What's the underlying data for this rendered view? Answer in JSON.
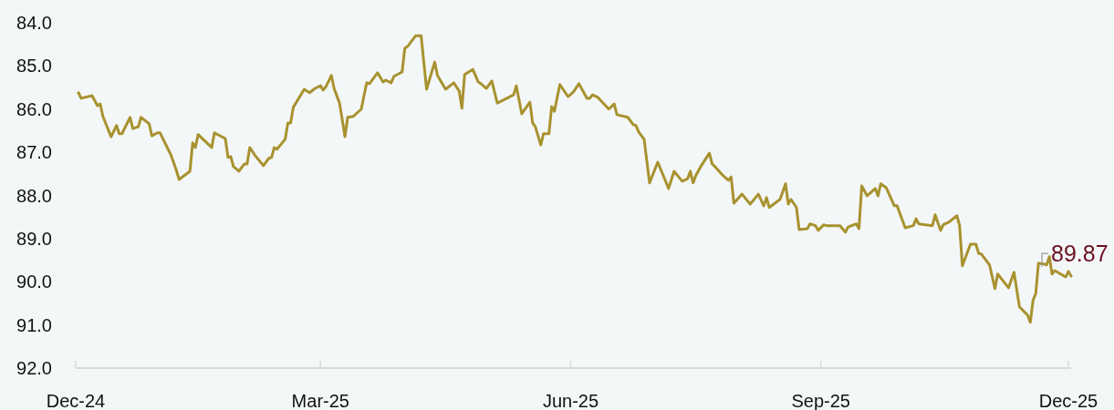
{
  "chart_data": {
    "type": "line",
    "xlim": [
      "2024-12-01",
      "2025-12-02"
    ],
    "ylim": [
      92,
      84
    ],
    "yticks": [
      {
        "value": 84,
        "label": "84.0"
      },
      {
        "value": 85,
        "label": "85.0"
      },
      {
        "value": 86,
        "label": "86.0"
      },
      {
        "value": 87,
        "label": "87.0"
      },
      {
        "value": 88,
        "label": "88.0"
      },
      {
        "value": 89,
        "label": "89.0"
      },
      {
        "value": 90,
        "label": "90.0"
      },
      {
        "value": 91,
        "label": "91.0"
      },
      {
        "value": 92,
        "label": "92.0"
      }
    ],
    "xticks": [
      {
        "value": "2024-12-01",
        "label": "Dec-24"
      },
      {
        "value": "2025-03-01",
        "label": "Mar-25"
      },
      {
        "value": "2025-06-01",
        "label": "Jun-25"
      },
      {
        "value": "2025-09-01",
        "label": "Sep-25"
      },
      {
        "value": "2025-12-01",
        "label": "Dec-25"
      }
    ],
    "grid": false,
    "marker": "none",
    "line_style": "solid",
    "annotations": [
      {
        "text": "89.87",
        "x": "2025-12-02",
        "y": 89.87
      }
    ],
    "series": [
      {
        "color": "#a8922f",
        "x": [
          "2024-12-02",
          "2024-12-03",
          "2024-12-07",
          "2024-12-09",
          "2024-12-10",
          "2024-12-11",
          "2024-12-14",
          "2024-12-16",
          "2024-12-17",
          "2024-12-18",
          "2024-12-21",
          "2024-12-22",
          "2024-12-24",
          "2024-12-25",
          "2024-12-28",
          "2024-12-29",
          "2024-12-31",
          "2025-01-01",
          "2025-01-05",
          "2025-01-07",
          "2025-01-08",
          "2025-01-12",
          "2025-01-13",
          "2025-01-14",
          "2025-01-15",
          "2025-01-20",
          "2025-01-21",
          "2025-01-25",
          "2025-01-26",
          "2025-01-27",
          "2025-01-28",
          "2025-01-30",
          "2025-02-01",
          "2025-02-02",
          "2025-02-03",
          "2025-02-05",
          "2025-02-08",
          "2025-02-10",
          "2025-02-11",
          "2025-02-12",
          "2025-02-13",
          "2025-02-16",
          "2025-02-17",
          "2025-02-18",
          "2025-02-19",
          "2025-02-23",
          "2025-02-25",
          "2025-02-27",
          "2025-03-01",
          "2025-03-02",
          "2025-03-03",
          "2025-03-05",
          "2025-03-06",
          "2025-03-08",
          "2025-03-10",
          "2025-03-11",
          "2025-03-13",
          "2025-03-16",
          "2025-03-17",
          "2025-03-18",
          "2025-03-19",
          "2025-03-22",
          "2025-03-24",
          "2025-03-25",
          "2025-03-27",
          "2025-03-28",
          "2025-03-31",
          "2025-04-01",
          "2025-04-02",
          "2025-04-05",
          "2025-04-07",
          "2025-04-09",
          "2025-04-12",
          "2025-04-13",
          "2025-04-16",
          "2025-04-19",
          "2025-04-21",
          "2025-04-22",
          "2025-04-23",
          "2025-04-26",
          "2025-04-28",
          "2025-04-29",
          "2025-05-01",
          "2025-05-03",
          "2025-05-05",
          "2025-05-11",
          "2025-05-12",
          "2025-05-14",
          "2025-05-17",
          "2025-05-18",
          "2025-05-19",
          "2025-05-21",
          "2025-05-22",
          "2025-05-24",
          "2025-05-25",
          "2025-05-26",
          "2025-05-28",
          "2025-05-31",
          "2025-06-02",
          "2025-06-04",
          "2025-06-07",
          "2025-06-08",
          "2025-06-09",
          "2025-06-11",
          "2025-06-15",
          "2025-06-17",
          "2025-06-18",
          "2025-06-22",
          "2025-06-24",
          "2025-06-25",
          "2025-06-26",
          "2025-06-28",
          "2025-06-30",
          "2025-07-03",
          "2025-07-07",
          "2025-07-09",
          "2025-07-12",
          "2025-07-14",
          "2025-07-15",
          "2025-07-16",
          "2025-07-17",
          "2025-07-19",
          "2025-07-22",
          "2025-07-23",
          "2025-07-24",
          "2025-07-27",
          "2025-07-29",
          "2025-07-30",
          "2025-07-31",
          "2025-08-03",
          "2025-08-06",
          "2025-08-09",
          "2025-08-11",
          "2025-08-12",
          "2025-08-13",
          "2025-08-17",
          "2025-08-19",
          "2025-08-20",
          "2025-08-21",
          "2025-08-23",
          "2025-08-24",
          "2025-08-27",
          "2025-08-28",
          "2025-08-30",
          "2025-08-31",
          "2025-09-02",
          "2025-09-03",
          "2025-09-08",
          "2025-09-10",
          "2025-09-11",
          "2025-09-14",
          "2025-09-15",
          "2025-09-16",
          "2025-09-18",
          "2025-09-21",
          "2025-09-22",
          "2025-09-23",
          "2025-09-25",
          "2025-09-28",
          "2025-09-29",
          "2025-10-02",
          "2025-10-05",
          "2025-10-06",
          "2025-10-07",
          "2025-10-12",
          "2025-10-13",
          "2025-10-15",
          "2025-10-16",
          "2025-10-18",
          "2025-10-21",
          "2025-10-22",
          "2025-10-23",
          "2025-10-26",
          "2025-10-28",
          "2025-10-29",
          "2025-10-30",
          "2025-11-02",
          "2025-11-04",
          "2025-11-05",
          "2025-11-09",
          "2025-11-11",
          "2025-11-13",
          "2025-11-15",
          "2025-11-16",
          "2025-11-17",
          "2025-11-18",
          "2025-11-19",
          "2025-11-20",
          "2025-11-22",
          "2025-11-23",
          "2025-11-24",
          "2025-11-25",
          "2025-11-26",
          "2025-11-30",
          "2025-12-01",
          "2025-12-02"
        ],
        "values": [
          85.62,
          85.75,
          85.69,
          85.92,
          85.88,
          86.17,
          86.64,
          86.38,
          86.57,
          86.57,
          86.19,
          86.45,
          86.41,
          86.19,
          86.34,
          86.62,
          86.55,
          86.55,
          87.06,
          87.42,
          87.63,
          87.44,
          86.78,
          86.89,
          86.59,
          86.89,
          86.55,
          86.68,
          87.12,
          87.1,
          87.33,
          87.44,
          87.27,
          87.27,
          86.89,
          87.08,
          87.31,
          87.14,
          87.12,
          86.89,
          86.93,
          86.7,
          86.32,
          86.32,
          85.96,
          85.54,
          85.62,
          85.52,
          85.46,
          85.56,
          85.48,
          85.22,
          85.52,
          85.86,
          86.64,
          86.19,
          86.17,
          86.0,
          85.69,
          85.39,
          85.41,
          85.16,
          85.37,
          85.33,
          85.39,
          85.24,
          85.14,
          84.59,
          84.55,
          84.3,
          84.3,
          85.54,
          84.91,
          85.22,
          85.54,
          85.39,
          85.58,
          85.98,
          85.2,
          85.08,
          85.37,
          85.41,
          85.52,
          85.35,
          85.86,
          85.67,
          85.46,
          86.11,
          85.84,
          86.32,
          86.41,
          86.83,
          86.57,
          86.57,
          85.94,
          86.05,
          85.43,
          85.71,
          85.6,
          85.41,
          85.75,
          85.75,
          85.67,
          85.73,
          86.0,
          85.88,
          86.13,
          86.19,
          86.36,
          86.38,
          86.53,
          86.7,
          87.71,
          87.23,
          87.84,
          87.44,
          87.67,
          87.61,
          87.44,
          87.71,
          87.54,
          87.31,
          87.02,
          87.27,
          87.33,
          87.54,
          87.65,
          87.57,
          88.18,
          87.97,
          88.2,
          87.97,
          88.24,
          88.05,
          88.28,
          88.09,
          87.73,
          88.2,
          88.09,
          88.28,
          88.79,
          88.77,
          88.66,
          88.7,
          88.81,
          88.68,
          88.7,
          88.7,
          88.85,
          88.73,
          88.66,
          88.77,
          87.78,
          88.01,
          87.84,
          88.01,
          87.73,
          87.82,
          88.24,
          88.24,
          88.75,
          88.7,
          88.54,
          88.66,
          88.7,
          88.45,
          88.81,
          88.68,
          88.62,
          88.47,
          88.7,
          89.63,
          89.13,
          89.13,
          89.34,
          89.36,
          89.61,
          90.16,
          89.82,
          90.14,
          89.78,
          90.58,
          90.71,
          90.77,
          90.94,
          90.43,
          90.27,
          89.57,
          89.59,
          89.61,
          89.42,
          89.82,
          89.74,
          89.89,
          89.76,
          89.87
        ]
      }
    ]
  }
}
